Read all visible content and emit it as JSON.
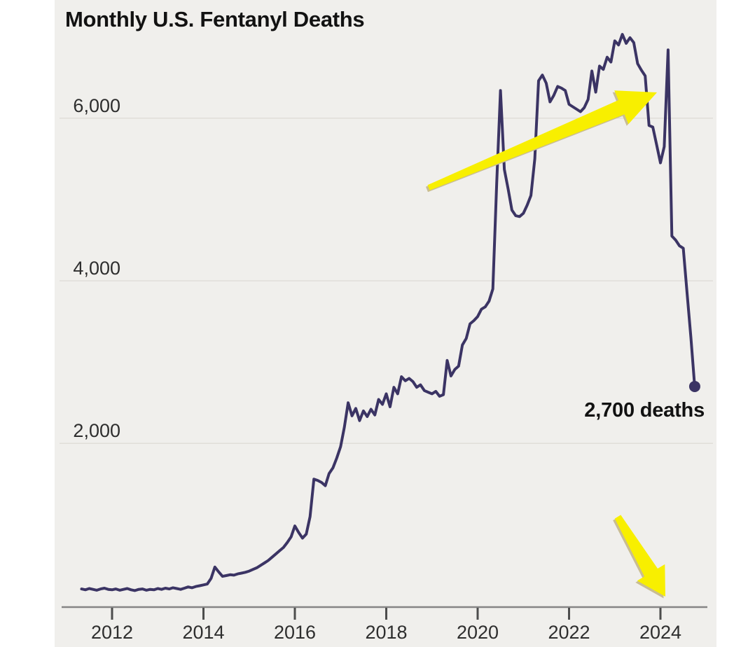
{
  "title": "Monthly U.S. Fentanyl Deaths",
  "colors": {
    "page_background": "#ffffff",
    "panel_background": "#f0efec",
    "line": "#3b3464",
    "gridline": "#e0ded9",
    "axis": "#858585",
    "tick": "#4d4d4d",
    "label_text": "#2e2e2e",
    "title_text": "#121212",
    "annotation_text": "#121212",
    "arrow": "#f8ef00",
    "arrow_shadow": "#c9bd92"
  },
  "chart_data": {
    "type": "line",
    "title": "Monthly U.S. Fentanyl Deaths",
    "xlabel": "",
    "ylabel": "",
    "grid": "horizontal",
    "legend": "none",
    "ylim": [
      0,
      7400
    ],
    "xlim_years": [
      2011.1,
      2025.1
    ],
    "x_start": "2011-05",
    "x_end": "2024-10",
    "x_ticks": [
      {
        "label": "2012",
        "year": 2012
      },
      {
        "label": "2014",
        "year": 2014
      },
      {
        "label": "2016",
        "year": 2016
      },
      {
        "label": "2018",
        "year": 2018
      },
      {
        "label": "2020",
        "year": 2020
      },
      {
        "label": "2022",
        "year": 2022
      },
      {
        "label": "2024",
        "year": 2024
      }
    ],
    "y_ticks": [
      {
        "label": "2,000",
        "value": 2000
      },
      {
        "label": "4,000",
        "value": 4000
      },
      {
        "label": "6,000",
        "value": 6000
      }
    ],
    "endpoint": {
      "label": "2,700 deaths",
      "value": 2700,
      "date": "2024-10"
    },
    "annotations": [
      {
        "type": "arrow",
        "direction": "up-right",
        "meaning": "long rise to the peak",
        "color": "#f8ef00"
      },
      {
        "type": "arrow",
        "direction": "down-right",
        "meaning": "sharp recent decline",
        "color": "#f8ef00"
      }
    ],
    "series": [
      {
        "name": "Monthly U.S. fentanyl deaths",
        "start_year": 2011,
        "start_month": 5,
        "monthly_values": [
          210,
          200,
          215,
          205,
          195,
          210,
          220,
          205,
          200,
          210,
          195,
          205,
          215,
          200,
          190,
          205,
          210,
          195,
          205,
          200,
          215,
          205,
          220,
          210,
          225,
          215,
          205,
          220,
          235,
          225,
          240,
          250,
          260,
          270,
          340,
          480,
          420,
          365,
          375,
          385,
          380,
          395,
          405,
          415,
          430,
          450,
          470,
          500,
          530,
          560,
          600,
          640,
          680,
          720,
          780,
          850,
          985,
          905,
          835,
          885,
          1100,
          1560,
          1545,
          1520,
          1480,
          1630,
          1700,
          1820,
          1960,
          2200,
          2500,
          2340,
          2430,
          2280,
          2400,
          2330,
          2420,
          2350,
          2540,
          2480,
          2610,
          2450,
          2690,
          2610,
          2820,
          2770,
          2800,
          2760,
          2690,
          2720,
          2650,
          2630,
          2610,
          2640,
          2580,
          2600,
          3020,
          2830,
          2910,
          2950,
          3210,
          3290,
          3470,
          3510,
          3560,
          3650,
          3680,
          3750,
          3900,
          5200,
          6340,
          5370,
          5130,
          4870,
          4800,
          4790,
          4830,
          4930,
          5050,
          5500,
          6460,
          6530,
          6430,
          6200,
          6280,
          6390,
          6370,
          6340,
          6170,
          6140,
          6110,
          6080,
          6130,
          6230,
          6580,
          6320,
          6640,
          6600,
          6750,
          6690,
          6950,
          6900,
          7030,
          6920,
          6990,
          6930,
          6670,
          6590,
          6520,
          5910,
          5890,
          5670,
          5450,
          5650,
          6840,
          4550,
          4500,
          4430,
          4400,
          3840,
          3300,
          2700
        ]
      }
    ]
  }
}
